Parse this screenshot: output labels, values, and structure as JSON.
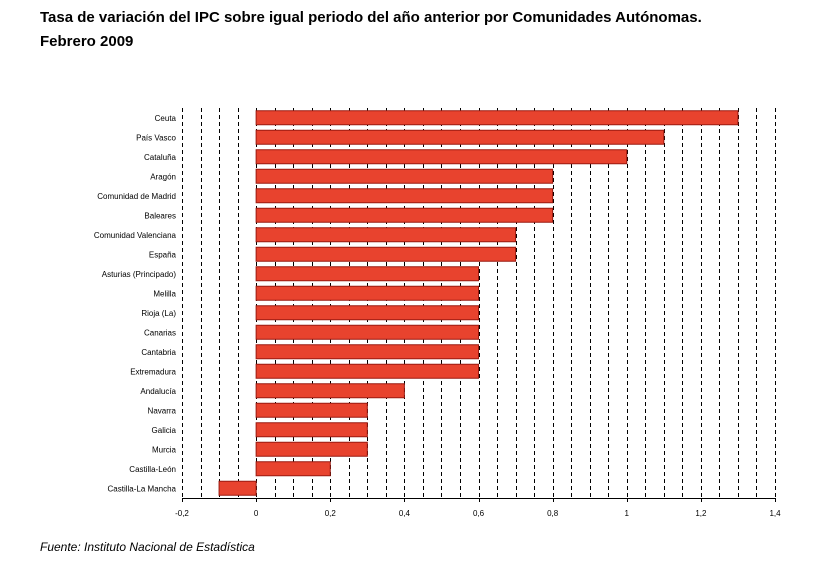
{
  "title_line1": "Tasa de variación del IPC sobre igual periodo del año anterior por Comunidades Autónomas.",
  "title_line2": "Febrero 2009",
  "source": "Fuente: Instituto Nacional de Estadística",
  "chart_data": {
    "type": "bar",
    "orientation": "horizontal",
    "categories": [
      "Ceuta",
      "País Vasco",
      "Cataluña",
      "Aragón",
      "Comunidad de Madrid",
      "Baleares",
      "Comunidad Valenciana",
      "España",
      "Asturias (Principado)",
      "Melilla",
      "Rioja (La)",
      "Canarias",
      "Cantabria",
      "Extremadura",
      "Andalucía",
      "Navarra",
      "Galicia",
      "Murcia",
      "Castilla-León",
      "Castilla-La Mancha"
    ],
    "values": [
      1.3,
      1.1,
      1.0,
      0.8,
      0.8,
      0.8,
      0.7,
      0.7,
      0.6,
      0.6,
      0.6,
      0.6,
      0.6,
      0.6,
      0.4,
      0.3,
      0.3,
      0.3,
      0.2,
      -0.1
    ],
    "xlim": [
      -0.2,
      1.4
    ],
    "ticks": [
      -0.2,
      0,
      0.2,
      0.4,
      0.6,
      0.8,
      1,
      1.2,
      1.4
    ],
    "tick_labels": [
      "-0,2",
      "0",
      "0,2",
      "0,4",
      "0,6",
      "0,8",
      "1",
      "1,2",
      "1,4"
    ],
    "grid": true,
    "bar_color": "#e8432e",
    "bar_edge_color": "#9b1a10"
  }
}
